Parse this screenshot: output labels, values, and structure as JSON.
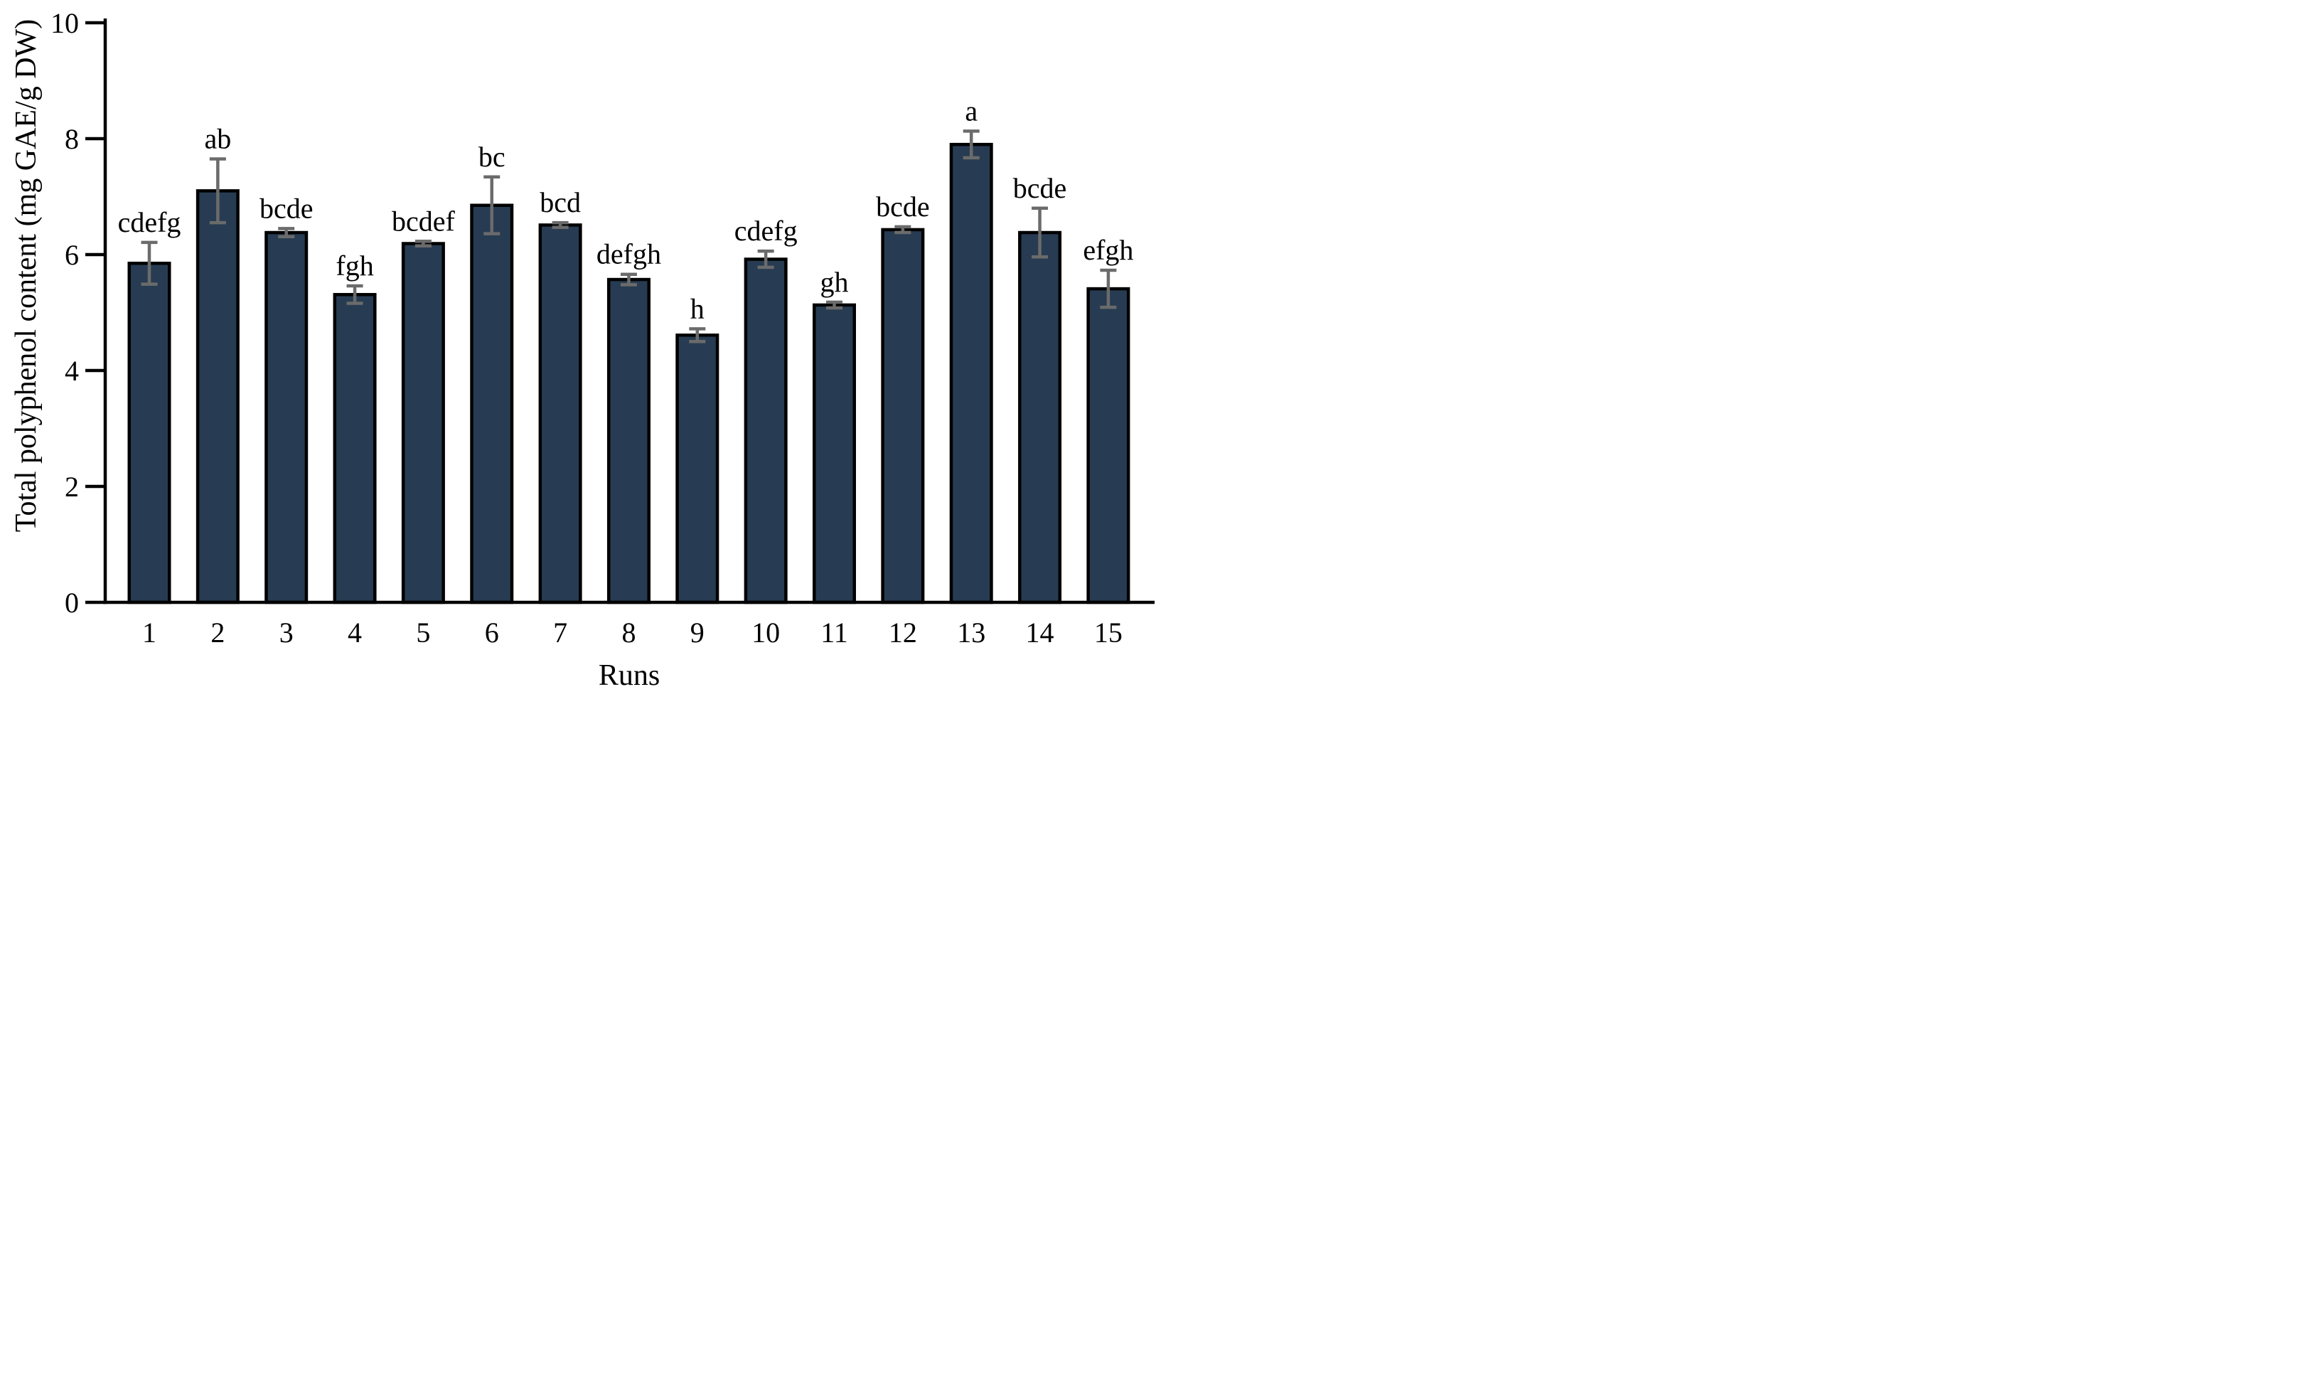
{
  "figure": {
    "xlabel": "Runs",
    "ylabel": "Total polyphenol content (mg GAE/g DW)"
  },
  "chart_data": {
    "type": "bar",
    "title": "",
    "xlabel": "Runs",
    "ylabel": "Total polyphenol content (mg GAE/g DW)",
    "categories": [
      "1",
      "2",
      "3",
      "4",
      "5",
      "6",
      "7",
      "8",
      "9",
      "10",
      "11",
      "12",
      "13",
      "14",
      "15"
    ],
    "values": [
      5.85,
      7.1,
      6.38,
      5.31,
      6.19,
      6.85,
      6.51,
      5.57,
      4.61,
      5.92,
      5.13,
      6.43,
      7.9,
      6.38,
      5.41
    ],
    "errors": [
      0.36,
      0.55,
      0.07,
      0.15,
      0.04,
      0.49,
      0.04,
      0.09,
      0.11,
      0.14,
      0.05,
      0.05,
      0.23,
      0.42,
      0.32
    ],
    "sig_letters": [
      "cdefg",
      "ab",
      "bcde",
      "fgh",
      "bcdef",
      "bc",
      "bcd",
      "defgh",
      "h",
      "cdefg",
      "gh",
      "bcde",
      "a",
      "bcde",
      "efgh"
    ],
    "ylim": [
      0,
      10
    ],
    "yticks": [
      0,
      2,
      4,
      6,
      8,
      10
    ],
    "grid": false,
    "legend": null,
    "colors": {
      "bar_fill": "#273c52",
      "bar_stroke": "#000000",
      "error_bar": "#6b6b6b",
      "axis": "#000000",
      "text": "#000000"
    }
  }
}
